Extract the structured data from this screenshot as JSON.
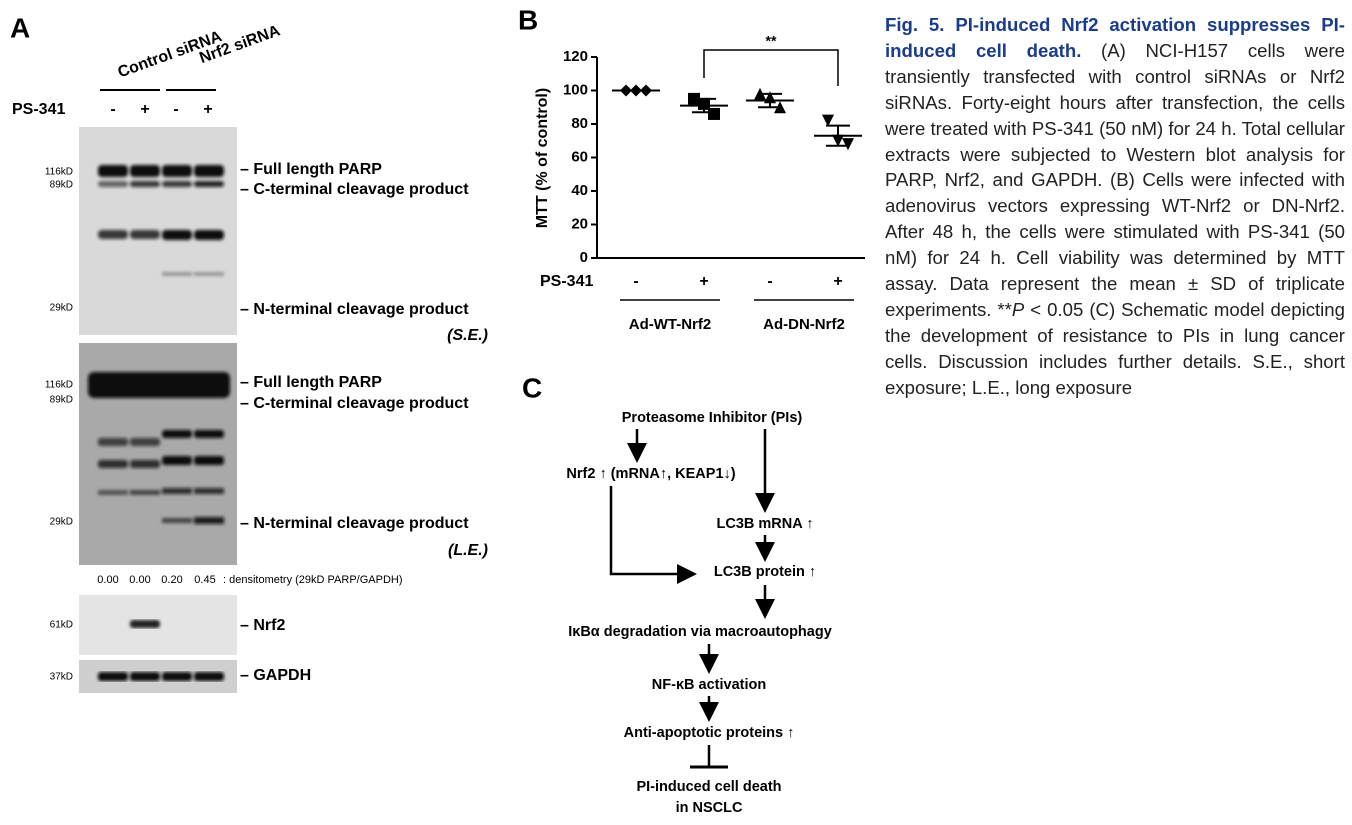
{
  "panel_a": {
    "label": "A",
    "groups": [
      "Control siRNA",
      "Nrf2 siRNA"
    ],
    "treatment_label": "PS-341",
    "treatments": [
      "-",
      "+",
      "-",
      "+"
    ],
    "blot_se": {
      "markers": [
        "116kD",
        "89kD",
        "29kD"
      ],
      "labels": [
        "Full length PARP",
        "C-terminal cleavage product",
        "N-terminal cleavage product"
      ],
      "exposure": "(S.E.)"
    },
    "blot_le": {
      "markers": [
        "116kD",
        "89kD",
        "29kD"
      ],
      "labels": [
        "Full length PARP",
        "C-terminal cleavage product",
        "N-terminal cleavage product"
      ],
      "exposure": "(L.E.)"
    },
    "densitometry": {
      "values": [
        "0.00",
        "0.00",
        "0.20",
        "0.45"
      ],
      "label": ": densitometry (29kD PARP/GAPDH)"
    },
    "blot_nrf2": {
      "marker": "61kD",
      "label": "Nrf2"
    },
    "blot_gapdh": {
      "marker": "37kD",
      "label": "GAPDH"
    }
  },
  "chart_data": {
    "type": "dot",
    "panel_label": "B",
    "ylabel": "MTT (% of control)",
    "ylim": [
      0,
      120
    ],
    "yticks": [
      0,
      20,
      40,
      60,
      80,
      100,
      120
    ],
    "row_label": "PS-341",
    "categories": [
      "-",
      "+",
      "-",
      "+"
    ],
    "groups": [
      "Ad-WT-Nrf2",
      "Ad-DN-Nrf2"
    ],
    "points": [
      [
        100,
        100,
        100
      ],
      [
        95,
        92,
        86
      ],
      [
        98,
        96,
        90
      ],
      [
        82,
        70,
        68
      ]
    ],
    "means": [
      100,
      91,
      94,
      73
    ],
    "sd": [
      0,
      4,
      4,
      6
    ],
    "markers": [
      "diamond",
      "square",
      "triangle",
      "triangle-down"
    ],
    "color": "#000000",
    "annotation": "**"
  },
  "panel_c": {
    "label": "C",
    "nodes": [
      "Proteasome Inhibitor (PIs)",
      "Nrf2 ↑ (mRNA↑, KEAP1↓)",
      "LC3B mRNA ↑",
      "LC3B protein ↑",
      "IκBα degradation via macroautophagy",
      "NF-κB activation",
      "Anti-apoptotic proteins ↑",
      "PI-induced cell death",
      "in NSCLC"
    ]
  },
  "caption": {
    "title": "Fig. 5. PI-induced Nrf2 activation suppresses PI-induced cell death.",
    "body": " (A) NCI-H157 cells were transiently transfected with control siRNAs or Nrf2 siRNAs. Forty-eight hours after transfection, the cells were treated with PS-341 (50 nM) for 24 h. Total cellular extracts were subjected to Western blot analysis for PARP, Nrf2, and GAPDH. (B) Cells were infected with adenovirus vectors expressing WT-Nrf2 or DN-Nrf2. After 48 h, the cells were stimulated with PS-341 (50 nM) for 24 h. Cell viability was determined by MTT assay. Data represent the mean ± SD of triplicate experiments. **",
    "italic": "P",
    "body_end": " < 0.05 (C) Schematic model depicting the development of resistance to PIs in lung cancer cells. Discussion includes further details. S.E., short exposure; L.E., long exposure"
  }
}
